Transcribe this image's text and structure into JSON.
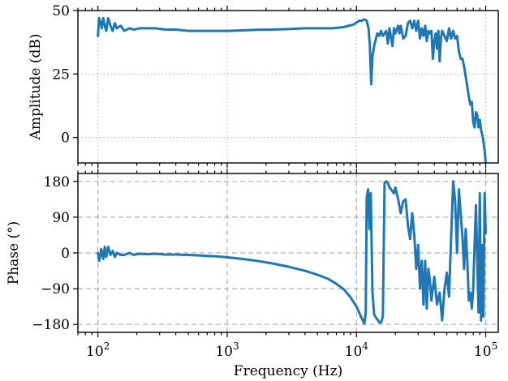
{
  "chart_data": [
    {
      "type": "line",
      "name": "amplitude-panel",
      "ylabel": "Amplitude (dB)",
      "xscale": "log",
      "xlim": [
        70,
        125000
      ],
      "ylim": [
        -10,
        50
      ],
      "yticks": [
        {
          "value": 0,
          "label": "0"
        },
        {
          "value": 25,
          "label": "25"
        },
        {
          "value": 50,
          "label": "50"
        }
      ],
      "grid": "dotted",
      "series_color": "#1f77b4",
      "x": [
        100,
        102,
        104,
        107,
        110,
        113,
        116,
        120,
        125,
        130,
        135,
        140,
        150,
        160,
        175,
        190,
        210,
        240,
        280,
        330,
        400,
        500,
        650,
        850,
        1000,
        1300,
        1700,
        2200,
        3000,
        4000,
        5000,
        6500,
        8000,
        9500,
        10500,
        11000,
        11500,
        12000,
        12400,
        12700,
        13000,
        13300,
        13700,
        14000,
        14500,
        15000,
        15500,
        16000,
        17000,
        17500,
        18000,
        19000,
        19500,
        20000,
        21000,
        21500,
        22000,
        23000,
        24000,
        25000,
        26000,
        27000,
        28000,
        29000,
        30000,
        31000,
        32000,
        33000,
        34000,
        35000,
        36000,
        37000,
        38000,
        39000,
        40000,
        41000,
        42000,
        43000,
        44000,
        45000,
        46000,
        48000,
        50000,
        52000,
        54000,
        56000,
        58000,
        60000,
        62000,
        64000,
        66000,
        68000,
        70000,
        72000,
        74000,
        76000,
        78000,
        80000,
        82000,
        84000,
        86000,
        88000,
        90000,
        92000,
        95000,
        98000,
        100000
      ],
      "y": [
        40,
        47,
        46,
        43,
        47,
        44,
        42,
        47,
        44,
        42,
        45,
        43,
        44,
        42,
        43,
        42.5,
        43,
        43,
        43,
        42.5,
        42.5,
        42,
        42,
        42,
        42,
        42.2,
        42.4,
        42.5,
        42.7,
        43,
        43,
        43,
        43.5,
        44.5,
        46,
        46,
        46.5,
        46,
        43,
        36,
        21,
        32,
        36,
        38,
        41,
        40,
        42,
        40,
        42,
        37,
        43,
        36,
        43,
        41,
        44,
        41,
        44,
        39,
        40,
        45,
        46,
        43,
        46,
        42,
        46,
        39,
        43,
        40,
        44,
        38,
        42,
        41,
        42,
        31,
        38,
        41,
        35,
        42,
        30,
        39,
        42,
        40,
        38,
        43,
        39,
        42,
        39,
        40,
        34,
        31,
        31,
        28,
        24,
        20,
        16,
        13,
        14,
        6,
        4,
        10,
        9,
        4,
        7,
        3,
        0,
        -5,
        -10
      ]
    },
    {
      "type": "line",
      "name": "phase-panel",
      "xlabel": "Frequency (Hz)",
      "ylabel": "Phase (°)",
      "xscale": "log",
      "xlim": [
        70,
        125000
      ],
      "ylim": [
        -200,
        200
      ],
      "xticks": [
        {
          "value": 100,
          "base": "10",
          "exp": "2"
        },
        {
          "value": 1000,
          "base": "10",
          "exp": "3"
        },
        {
          "value": 10000,
          "base": "10",
          "exp": "4"
        },
        {
          "value": 100000,
          "base": "10",
          "exp": "5"
        }
      ],
      "yticks": [
        {
          "value": -180,
          "label": "−180"
        },
        {
          "value": -90,
          "label": "−90"
        },
        {
          "value": 0,
          "label": "0"
        },
        {
          "value": 90,
          "label": "90"
        },
        {
          "value": 180,
          "label": "180"
        }
      ],
      "grid": "dashed",
      "series_color": "#1f77b4",
      "x": [
        100,
        102,
        104,
        106,
        108,
        110,
        113,
        116,
        120,
        125,
        130,
        135,
        140,
        150,
        160,
        175,
        190,
        210,
        240,
        280,
        330,
        400,
        500,
        650,
        850,
        1000,
        1300,
        1700,
        2200,
        3000,
        4000,
        5000,
        6000,
        7000,
        8000,
        9000,
        10000,
        10500,
        11000,
        11500,
        11800,
        12000,
        12300,
        12600,
        12900,
        13300,
        13700,
        14000,
        14300,
        14700,
        15000,
        15500,
        16000,
        16500,
        17000,
        17500,
        18000,
        18500,
        19000,
        19500,
        20000,
        21000,
        22000,
        23000,
        24000,
        25000,
        26000,
        27000,
        28000,
        29000,
        30000,
        31000,
        32000,
        33000,
        34000,
        35000,
        36000,
        37000,
        38000,
        40000,
        42000,
        44000,
        46000,
        48000,
        50000,
        52000,
        54000,
        56000,
        58000,
        60000,
        62000,
        64000,
        66000,
        68000,
        70000,
        72000,
        74000,
        76000,
        78000,
        80000,
        82000,
        84000,
        86000,
        88000,
        90000,
        92000,
        94000,
        96000,
        98000,
        100000
      ],
      "y": [
        0,
        -20,
        -10,
        10,
        0,
        -15,
        15,
        -10,
        15,
        -5,
        5,
        -10,
        0,
        -5,
        -5,
        0,
        -5,
        -2,
        -3,
        -2,
        -4,
        -4,
        -5,
        -7,
        -9,
        -11,
        -15,
        -20,
        -26,
        -35,
        -45,
        -55,
        -65,
        -78,
        -92,
        -112,
        -135,
        -150,
        -165,
        -178,
        -150,
        140,
        160,
        60,
        150,
        -100,
        -155,
        -160,
        -165,
        -170,
        -175,
        -175,
        -160,
        176,
        180,
        176,
        165,
        160,
        155,
        150,
        165,
        135,
        100,
        130,
        135,
        70,
        35,
        100,
        45,
        -40,
        20,
        -90,
        -20,
        -130,
        -20,
        -140,
        -40,
        -70,
        -120,
        -60,
        -130,
        -100,
        -170,
        -90,
        -50,
        -110,
        40,
        180,
        130,
        0,
        160,
        100,
        40,
        -40,
        60,
        -20,
        -120,
        -100,
        -140,
        -90,
        20,
        120,
        -20,
        -150,
        150,
        -170,
        20,
        -160,
        150,
        50
      ]
    }
  ]
}
